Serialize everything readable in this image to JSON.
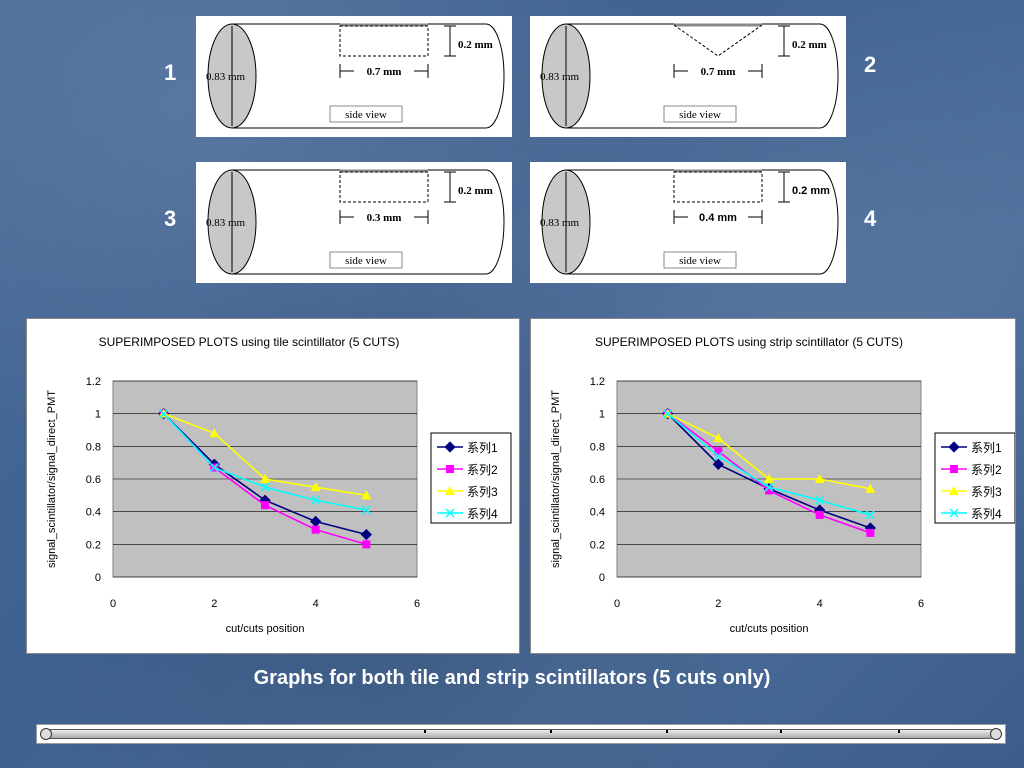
{
  "diagrams": [
    {
      "number": "1",
      "diameter": "0.83 mm",
      "depth": "0.2 mm",
      "width": "0.7 mm",
      "view": "side view",
      "shape": "rect"
    },
    {
      "number": "2",
      "diameter": "0.83 mm",
      "depth": "0.2 mm",
      "width": "0.7 mm",
      "view": "side view",
      "shape": "v"
    },
    {
      "number": "3",
      "diameter": "0.83 mm",
      "depth": "0.2 mm",
      "width": "0.3 mm",
      "view": "side view",
      "shape": "rect"
    },
    {
      "number": "4",
      "diameter": "0.83 mm",
      "depth": "0.2 mm",
      "width": "0.4 mm",
      "view": "side view",
      "shape": "rect"
    }
  ],
  "caption": "Graphs for both tile and strip scintillators (5 cuts only)",
  "colors": {
    "series1": "#000080",
    "series2": "#ff00ff",
    "series3": "#ffff00",
    "series4": "#00ffff",
    "plot_bg": "#c0c0c0"
  },
  "chart_data": [
    {
      "type": "line",
      "title": "SUPERIMPOSED PLOTS using tile scintillator (5 CUTS)",
      "xlabel": "cut/cuts position",
      "ylabel": "signal_scintillator/signal_direct_PMT",
      "xlim": [
        0,
        6
      ],
      "ylim": [
        0,
        1.2
      ],
      "xticks": [
        "0",
        "2",
        "4",
        "6"
      ],
      "yticks": [
        "0",
        "0.2",
        "0.4",
        "0.6",
        "0.8",
        "1",
        "1.2"
      ],
      "grid": true,
      "legend": "right",
      "x": [
        1,
        2,
        3,
        4,
        5
      ],
      "series": [
        {
          "name": "系列1",
          "values": [
            1.0,
            0.69,
            0.47,
            0.34,
            0.26
          ]
        },
        {
          "name": "系列2",
          "values": [
            1.0,
            0.67,
            0.44,
            0.29,
            0.2
          ]
        },
        {
          "name": "系列3",
          "values": [
            1.0,
            0.88,
            0.6,
            0.55,
            0.5
          ]
        },
        {
          "name": "系列4",
          "values": [
            1.0,
            0.67,
            0.55,
            0.47,
            0.41
          ]
        }
      ]
    },
    {
      "type": "line",
      "title": "SUPERIMPOSED PLOTS using strip scintillator (5 CUTS)",
      "xlabel": "cut/cuts position",
      "ylabel": "signal_scintillator/signal_direct_PMT",
      "xlim": [
        0,
        6
      ],
      "ylim": [
        0,
        1.2
      ],
      "xticks": [
        "0",
        "2",
        "4",
        "6"
      ],
      "yticks": [
        "0",
        "0.2",
        "0.4",
        "0.6",
        "0.8",
        "1",
        "1.2"
      ],
      "grid": true,
      "legend": "right",
      "x": [
        1,
        2,
        3,
        4,
        5
      ],
      "series": [
        {
          "name": "系列1",
          "values": [
            1.0,
            0.69,
            0.54,
            0.41,
            0.3
          ]
        },
        {
          "name": "系列2",
          "values": [
            1.0,
            0.77,
            0.53,
            0.38,
            0.27
          ]
        },
        {
          "name": "系列3",
          "values": [
            1.0,
            0.85,
            0.6,
            0.6,
            0.54
          ]
        },
        {
          "name": "系列4",
          "values": [
            1.0,
            0.74,
            0.55,
            0.47,
            0.38
          ]
        }
      ]
    }
  ]
}
